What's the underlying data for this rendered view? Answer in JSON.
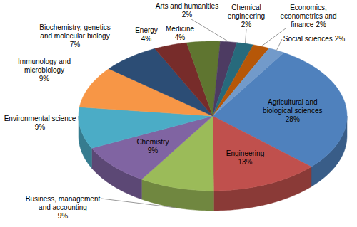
{
  "chart_data": {
    "type": "pie",
    "categories": [
      "Agricultural and biological sciences",
      "Engineering",
      "Business, management and accounting",
      "Chemistry",
      "Environmental science",
      "Immunology and microbiology",
      "Biochemistry, genetics and molecular biology",
      "Energy",
      "Medicine",
      "Arts and humanities",
      "Chemical engineering",
      "Economics, econometrics and finance",
      "Social sciences"
    ],
    "values": [
      28,
      13,
      9,
      9,
      9,
      9,
      7,
      4,
      4,
      2,
      2,
      2,
      2
    ],
    "value_labels": [
      "28%",
      "13%",
      "9%",
      "9%",
      "9%",
      "9%",
      "7%",
      "4%",
      "4%",
      "2%",
      "2%",
      "2%",
      "2%"
    ],
    "colors": [
      "#4f81bd",
      "#c0504d",
      "#9bbb59",
      "#8064a2",
      "#4bacc6",
      "#f79646",
      "#2c4d75",
      "#772c2a",
      "#5f7530",
      "#4d3b62",
      "#276a7c",
      "#b65708",
      "#729aca"
    ],
    "data_labels": true
  }
}
